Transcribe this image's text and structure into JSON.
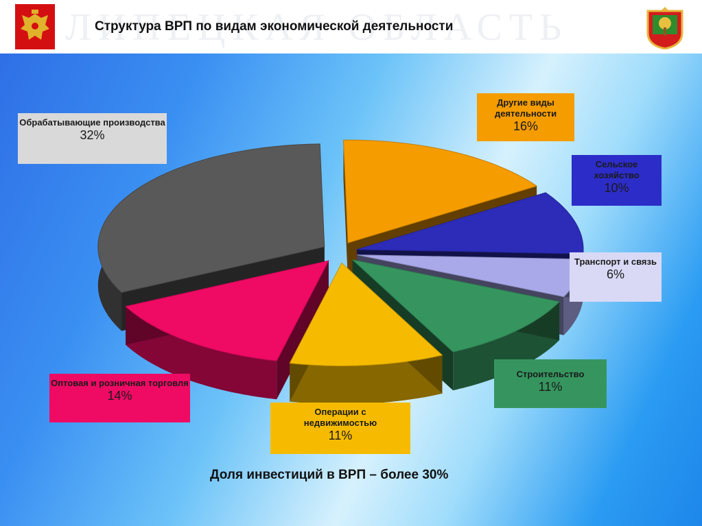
{
  "header": {
    "title": "Структура ВРП по видам экономической деятельности",
    "watermark": "ЛИПЕЦКАЯ ОБЛАСТЬ"
  },
  "colors": {
    "manufacturing": "#595959",
    "other": "#f59c00",
    "agriculture": "#2c2cb8",
    "transport": "#a9a9ea",
    "construction": "#36955f",
    "real_estate": "#f6bb00",
    "trade": "#ef0a64"
  },
  "chart_data": {
    "type": "pie",
    "title": "Структура ВРП по видам экономической деятельности",
    "slices": [
      {
        "label": "Обрабатывающие производства",
        "value": 32,
        "value_label": "32%"
      },
      {
        "label": "Другие виды деятельности",
        "value": 16,
        "value_label": "16%"
      },
      {
        "label": "Сельское хозяйство",
        "value": 10,
        "value_label": "10%"
      },
      {
        "label": "Транспорт и связь",
        "value": 6,
        "value_label": "6%"
      },
      {
        "label": "Строительство",
        "value": 11,
        "value_label": "11%"
      },
      {
        "label": "Операции с недвижимостью",
        "value": 11,
        "value_label": "11%"
      },
      {
        "label": "Оптовая и розничная торговля",
        "value": 14,
        "value_label": "14%"
      }
    ],
    "style": "3d-exploded"
  },
  "footer": {
    "note": "Доля инвестиций в ВРП – более 30%"
  }
}
